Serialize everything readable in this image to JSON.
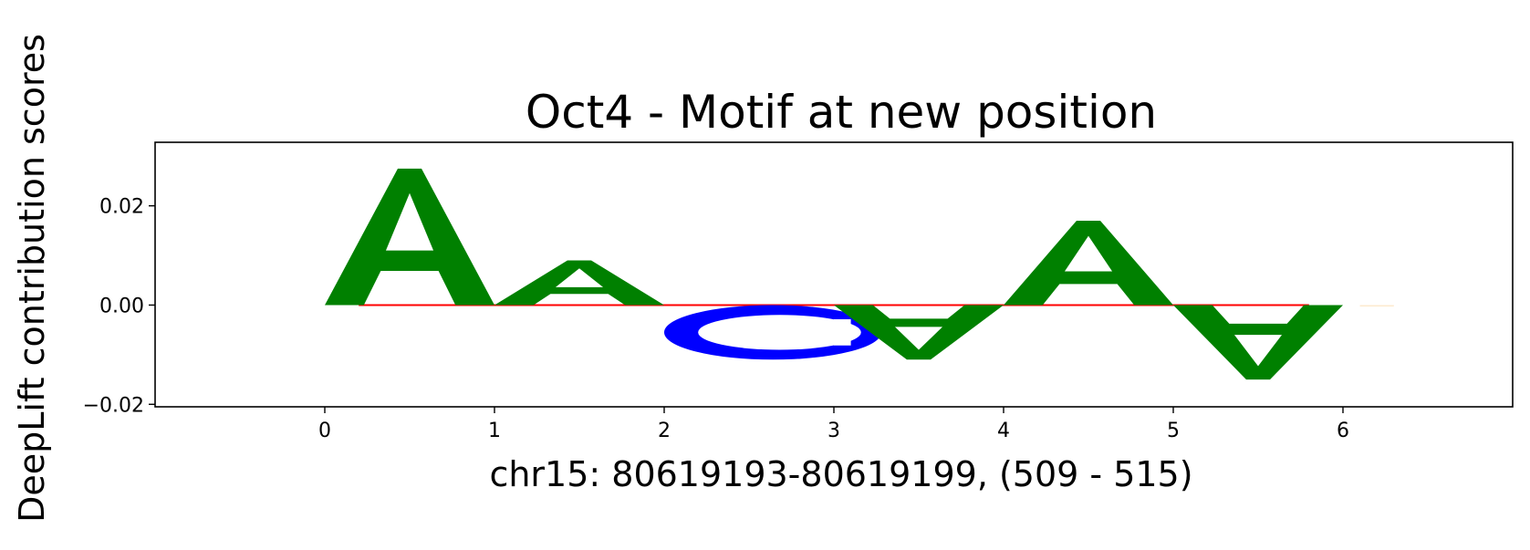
{
  "chart_data": {
    "type": "sequence-logo",
    "title": "Oct4 - Motif at new position",
    "xlabel": "chr15: 80619193-80619199, (509 - 515)",
    "ylabel": "DeepLift contribution scores",
    "xlim": [
      -1,
      7
    ],
    "ylim": [
      -0.0205,
      0.0328
    ],
    "xticks": [
      0,
      1,
      2,
      3,
      4,
      5,
      6
    ],
    "xtick_labels": [
      "0",
      "1",
      "2",
      "3",
      "4",
      "5",
      "6"
    ],
    "yticks": [
      -0.02,
      0.0,
      0.02
    ],
    "ytick_labels": [
      "−0.02",
      "0.00",
      "0.02"
    ],
    "baseline": {
      "from": 0.2,
      "to": 5.8,
      "color": "#ff0000"
    },
    "colors": {
      "A": "#008000",
      "C": "#0000ff",
      "G": "#ffa500",
      "T": "#ff0000"
    },
    "letters": [
      {
        "base": "A",
        "position": 0,
        "value": 0.0275
      },
      {
        "base": "A",
        "position": 1,
        "value": 0.009
      },
      {
        "base": "C",
        "position": 2,
        "value": -0.011
      },
      {
        "base": "A",
        "position": 3,
        "value": -0.011
      },
      {
        "base": "A",
        "position": 4,
        "value": 0.017
      },
      {
        "base": "A",
        "position": 5,
        "value": -0.015
      },
      {
        "base": "G",
        "position": 6,
        "value": -0.0003
      }
    ]
  }
}
